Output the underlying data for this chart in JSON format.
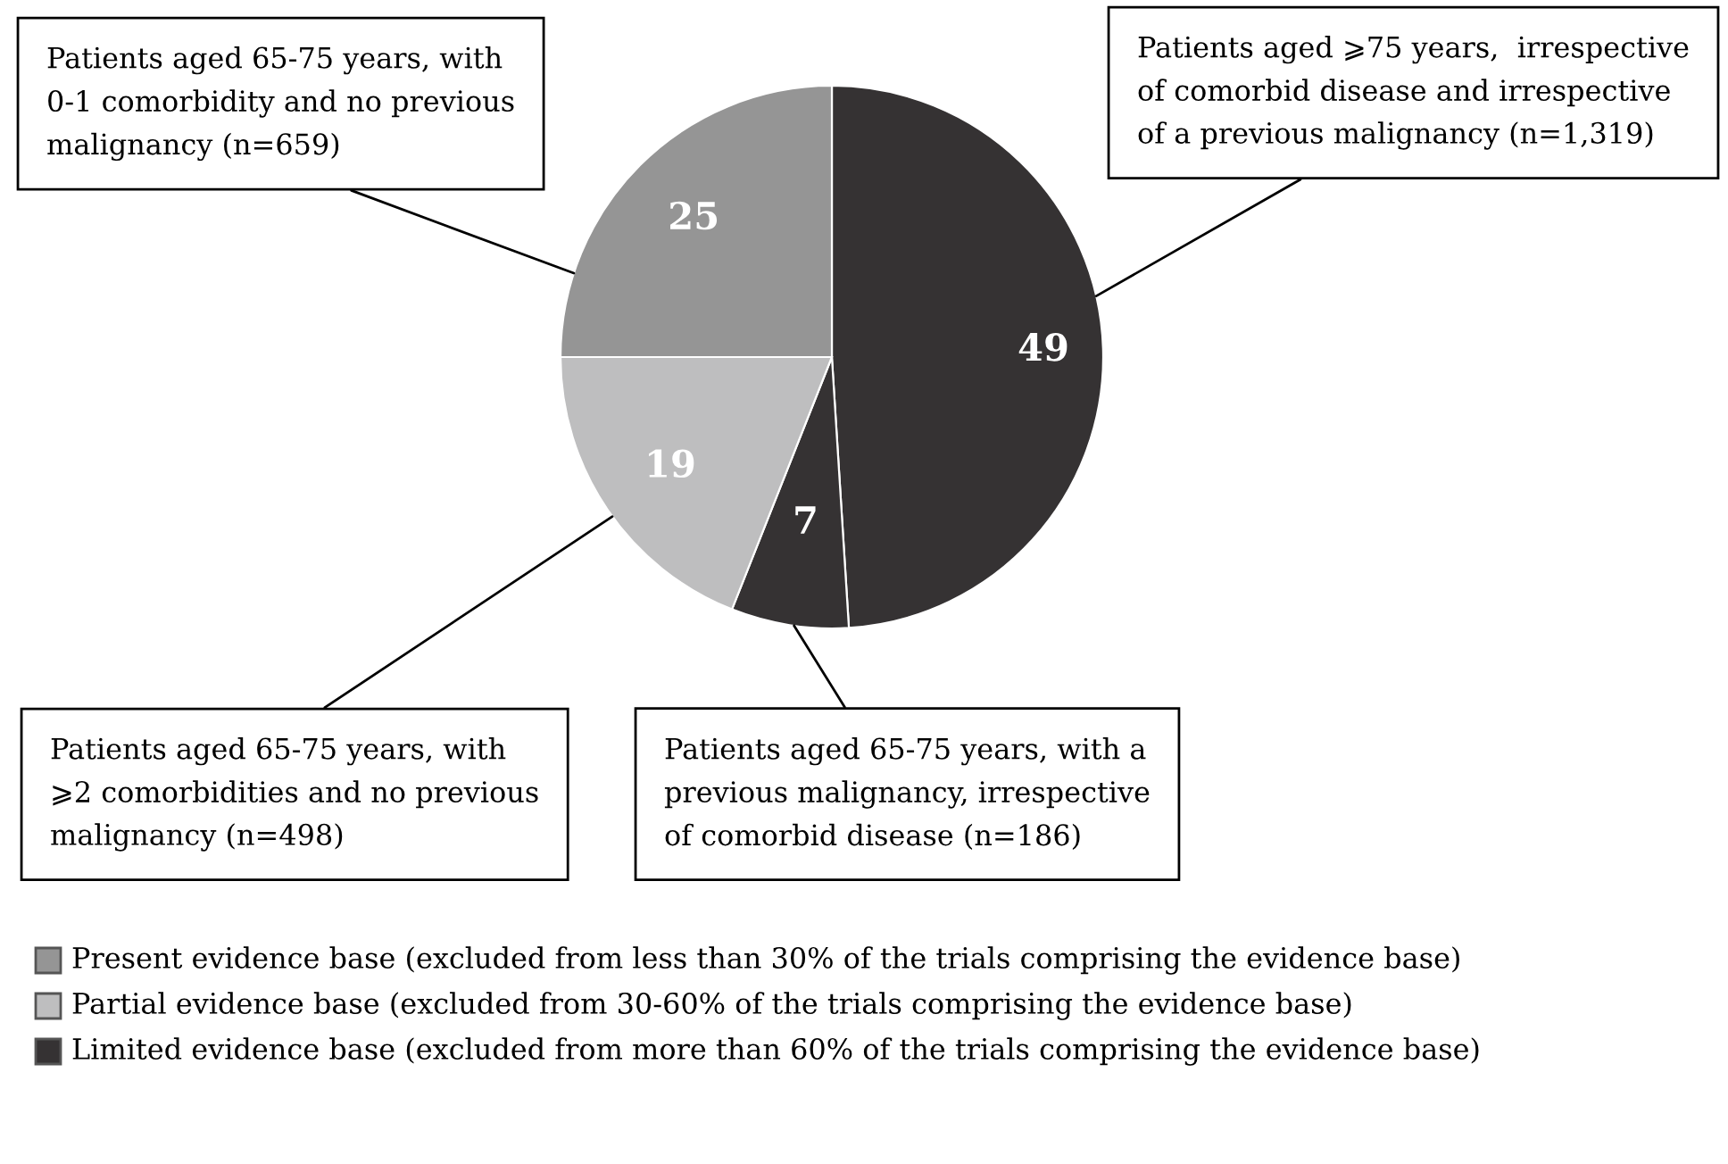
{
  "chart_data": {
    "type": "pie",
    "categories": [
      "Patients aged ⩾75 years,  irrespective\nof comorbid disease and irrespective\nof a previous malignancy (n=1,319)",
      "Patients aged 65-75 years, with a\nprevious malignancy, irrespective\nof comorbid disease (n=186)",
      "Patients aged 65-75 years, with\n⩾2 comorbidities and no previous\nmalignancy (n=498)",
      "Patients aged 65-75 years, with\n0-1 comorbidity and no previous\nmalignancy (n=659)"
    ],
    "values": [
      49,
      7,
      19,
      25
    ],
    "colors": [
      "#353233",
      "#353233",
      "#bebebf",
      "#959595"
    ],
    "data_labels": true,
    "annotations": [
      "Present evidence base (excluded from less than 30% of the trials comprising the evidence base)",
      "Partial evidence base (excluded from 30-60% of the trials comprising the evidence base)",
      "Limited evidence base (excluded from more than 60% of the trials comprising the evidence base)"
    ]
  }
}
